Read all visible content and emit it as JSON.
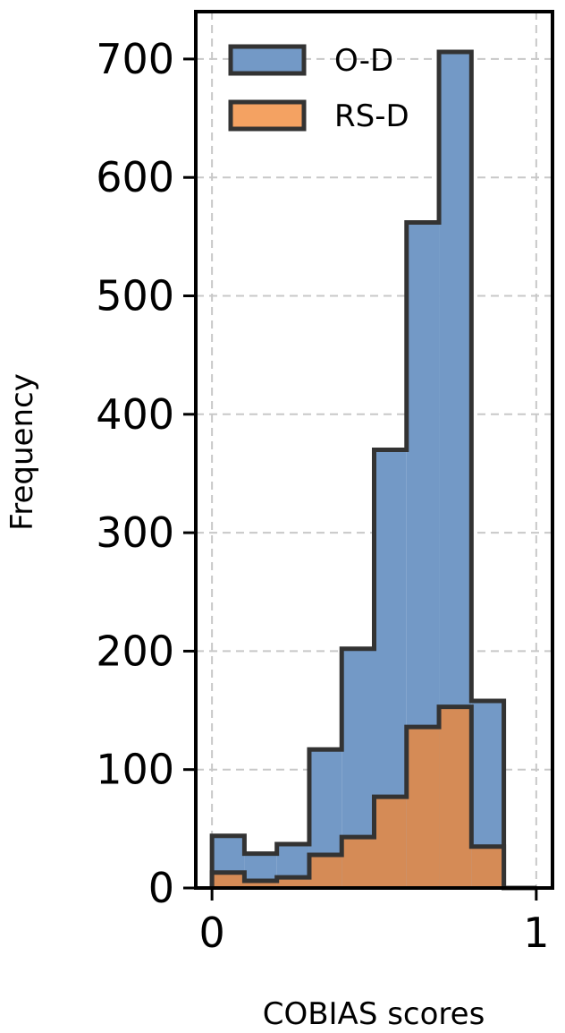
{
  "chart_data": {
    "type": "bar",
    "xlabel": "COBIAS scores",
    "ylabel": "Frequency",
    "xlim": [
      -0.05,
      1.05
    ],
    "ylim": [
      0,
      740
    ],
    "xticks": [
      0,
      1
    ],
    "xtick_labels": [
      "0",
      "1"
    ],
    "yticks": [
      0,
      100,
      200,
      300,
      400,
      500,
      600,
      700
    ],
    "ytick_labels": [
      "0",
      "100",
      "200",
      "300",
      "400",
      "500",
      "600",
      "700"
    ],
    "grid": true,
    "legend_position": "top-left",
    "bin_edges": [
      0,
      0.1,
      0.2,
      0.3,
      0.4,
      0.5,
      0.6,
      0.7,
      0.8,
      0.9,
      1.0
    ],
    "series": [
      {
        "name": "O-D",
        "color": "#7399c6",
        "values": [
          44,
          29,
          37,
          117,
          202,
          370,
          562,
          706,
          158,
          0
        ]
      },
      {
        "name": "RS-D",
        "color": "#d58b56",
        "legend_color": "#f4a262",
        "values": [
          13,
          6,
          9,
          28,
          43,
          77,
          136,
          153,
          35,
          0
        ]
      }
    ]
  }
}
